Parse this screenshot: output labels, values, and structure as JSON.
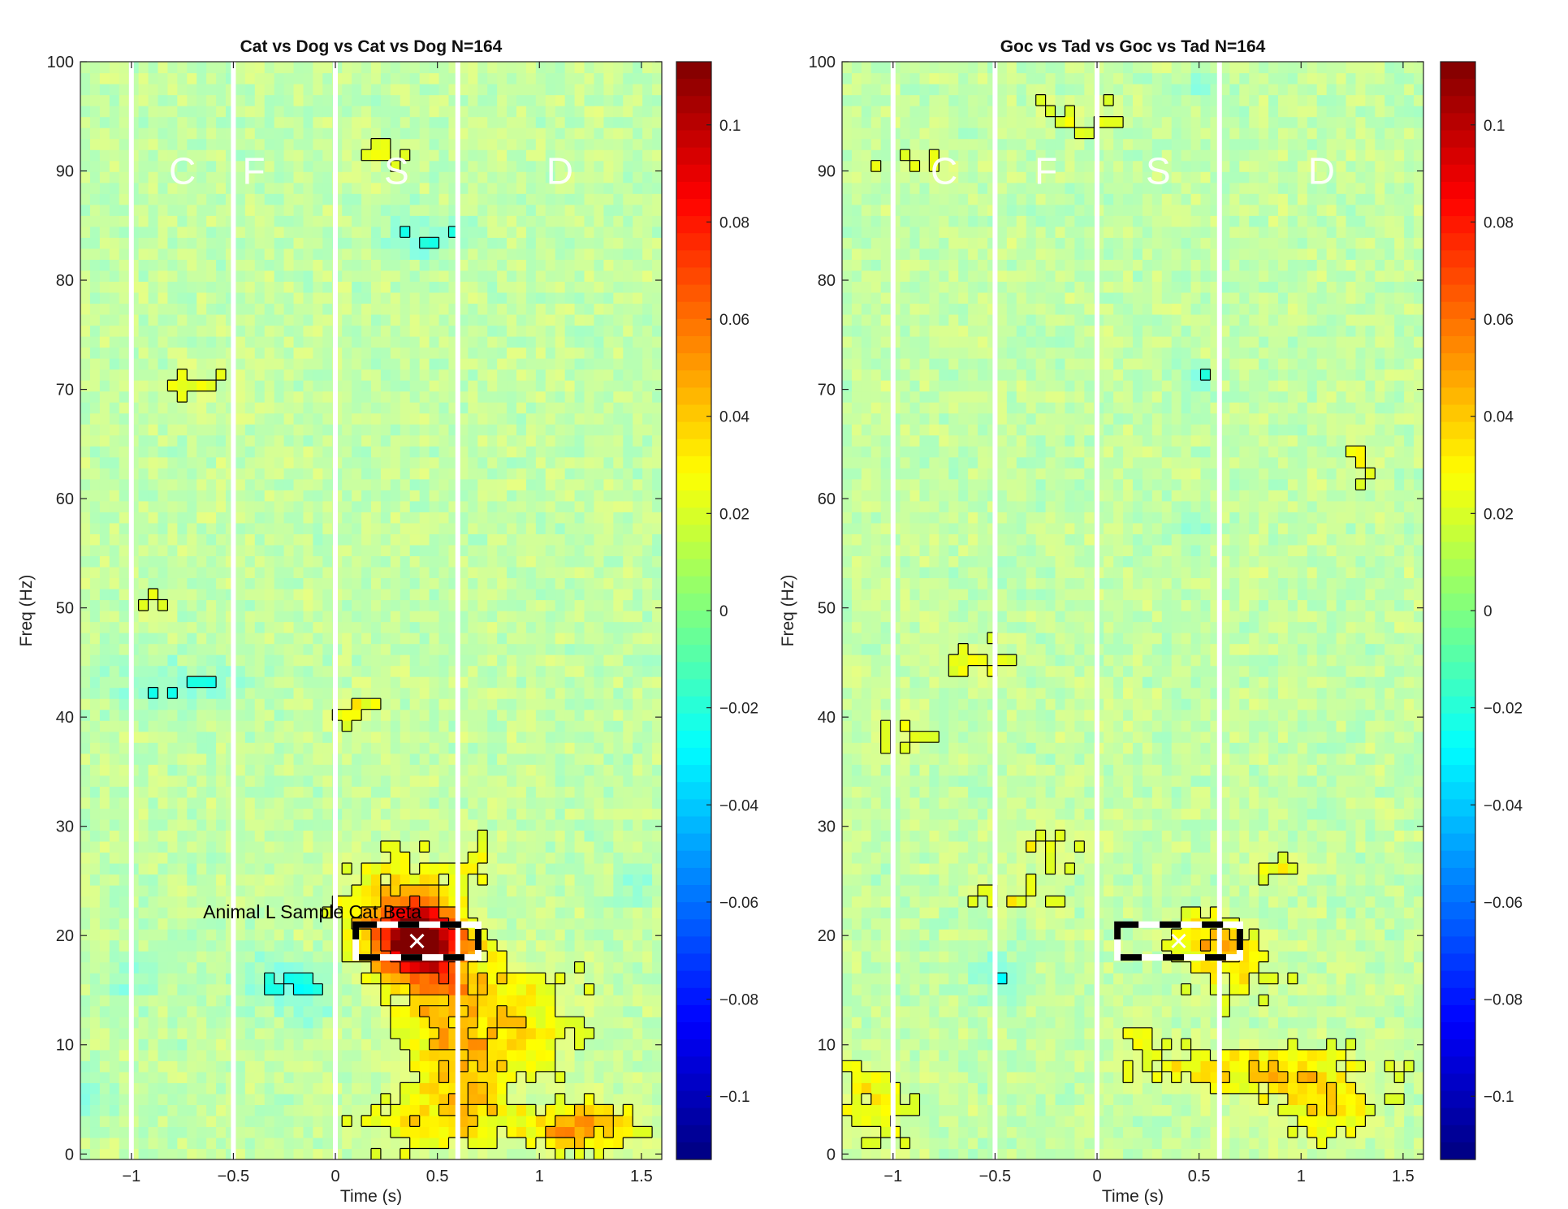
{
  "chart_data": [
    {
      "type": "heatmap",
      "title": "Cat vs Dog vs Cat vs Dog N=164",
      "xlabel": "Time (s)",
      "ylabel": "Freq (Hz)",
      "xlim": [
        -1.25,
        1.6
      ],
      "ylim": [
        -0.5,
        100
      ],
      "xticks": [
        -1,
        -0.5,
        0,
        0.5,
        1,
        1.5
      ],
      "xtick_labels": [
        "−1",
        "−0.5",
        "0",
        "0.5",
        "1",
        "1.5"
      ],
      "yticks": [
        0,
        10,
        20,
        30,
        40,
        50,
        60,
        70,
        80,
        90,
        100
      ],
      "ytick_labels": [
        "0",
        "10",
        "20",
        "30",
        "40",
        "50",
        "60",
        "70",
        "80",
        "90",
        "100"
      ],
      "epoch_lines": [
        -1,
        -0.5,
        0,
        0.6
      ],
      "phase_labels": [
        {
          "text": "C",
          "x": -0.75,
          "y": 90
        },
        {
          "text": "F",
          "x": -0.4,
          "y": 90
        },
        {
          "text": "S",
          "x": 0.3,
          "y": 90
        },
        {
          "text": "D",
          "x": 1.1,
          "y": 90
        }
      ],
      "roi": {
        "t0": 0.1,
        "t1": 0.7,
        "f0": 18,
        "f1": 21,
        "marker": {
          "x": 0.4,
          "y": 19.5
        },
        "label": "Animal L Sample Cat Beta"
      },
      "colorbar": {
        "range": [
          -0.113,
          0.113
        ],
        "ticks": [
          0.1,
          0.08,
          0.06,
          0.04,
          0.02,
          0,
          -0.02,
          -0.04,
          -0.06,
          -0.08,
          -0.1
        ],
        "tick_labels": [
          "0.1",
          "0.08",
          "0.06",
          "0.04",
          "0.02",
          "0",
          "−0.02",
          "−0.04",
          "−0.06",
          "−0.08",
          "−0.1"
        ]
      },
      "blobs": [
        {
          "x": 0.42,
          "y": 19.5,
          "sx": 0.14,
          "sy": 2.2,
          "a": 0.105
        },
        {
          "x": 0.3,
          "y": 22,
          "sx": 0.2,
          "sy": 3.5,
          "a": 0.035
        },
        {
          "x": 0.5,
          "y": 14,
          "sx": 0.15,
          "sy": 4,
          "a": 0.025
        },
        {
          "x": 0.85,
          "y": 15,
          "sx": 0.25,
          "sy": 2,
          "a": 0.025
        },
        {
          "x": 1.2,
          "y": 2.5,
          "sx": 0.2,
          "sy": 1.5,
          "a": 0.045
        },
        {
          "x": 0.8,
          "y": 10,
          "sx": 0.25,
          "sy": 2.5,
          "a": 0.025
        },
        {
          "x": 0.65,
          "y": 5,
          "sx": 0.15,
          "sy": 3,
          "a": 0.028
        },
        {
          "x": 0.35,
          "y": 3,
          "sx": 0.2,
          "sy": 2,
          "a": 0.018
        },
        {
          "x": 0.7,
          "y": 27,
          "sx": 0.08,
          "sy": 1.5,
          "a": 0.018
        },
        {
          "x": -0.8,
          "y": 43,
          "sx": 0.25,
          "sy": 1.5,
          "a": -0.025
        },
        {
          "x": -0.3,
          "y": 16,
          "sx": 0.15,
          "sy": 1.8,
          "a": -0.025
        },
        {
          "x": -0.1,
          "y": 14,
          "sx": 0.08,
          "sy": 1.5,
          "a": -0.02
        },
        {
          "x": -1.0,
          "y": 16,
          "sx": 0.1,
          "sy": 1.5,
          "a": -0.02
        },
        {
          "x": 0.45,
          "y": 84,
          "sx": 0.15,
          "sy": 1.5,
          "a": -0.025
        },
        {
          "x": -0.7,
          "y": 70.5,
          "sx": 0.1,
          "sy": 1,
          "a": 0.022
        },
        {
          "x": 0.1,
          "y": 41,
          "sx": 0.1,
          "sy": 1,
          "a": 0.018
        },
        {
          "x": -1.2,
          "y": 5,
          "sx": 0.08,
          "sy": 1.5,
          "a": -0.022
        },
        {
          "x": -0.9,
          "y": 50,
          "sx": 0.07,
          "sy": 1,
          "a": 0.015
        },
        {
          "x": 0.25,
          "y": 91.5,
          "sx": 0.1,
          "sy": 0.8,
          "a": 0.015
        },
        {
          "x": 1.5,
          "y": 25,
          "sx": 0.06,
          "sy": 1.5,
          "a": -0.02
        }
      ]
    },
    {
      "type": "heatmap",
      "title": "Goc vs Tad vs Goc vs Tad N=164",
      "xlabel": "Time (s)",
      "ylabel": "Freq (Hz)",
      "xlim": [
        -1.25,
        1.6
      ],
      "ylim": [
        -0.5,
        100
      ],
      "xticks": [
        -1,
        -0.5,
        0,
        0.5,
        1,
        1.5
      ],
      "xtick_labels": [
        "−1",
        "−0.5",
        "0",
        "0.5",
        "1",
        "1.5"
      ],
      "yticks": [
        0,
        10,
        20,
        30,
        40,
        50,
        60,
        70,
        80,
        90,
        100
      ],
      "ytick_labels": [
        "0",
        "10",
        "20",
        "30",
        "40",
        "50",
        "60",
        "70",
        "80",
        "90",
        "100"
      ],
      "epoch_lines": [
        -1,
        -0.5,
        0,
        0.6
      ],
      "phase_labels": [
        {
          "text": "C",
          "x": -0.75,
          "y": 90
        },
        {
          "text": "F",
          "x": -0.25,
          "y": 90
        },
        {
          "text": "S",
          "x": 0.3,
          "y": 90
        },
        {
          "text": "D",
          "x": 1.1,
          "y": 90
        }
      ],
      "roi": {
        "t0": 0.1,
        "t1": 0.7,
        "f0": 18,
        "f1": 21,
        "marker": {
          "x": 0.4,
          "y": 19.5
        },
        "label": ""
      },
      "colorbar": {
        "range": [
          -0.113,
          0.113
        ],
        "ticks": [
          0.1,
          0.08,
          0.06,
          0.04,
          0.02,
          0,
          -0.02,
          -0.04,
          -0.06,
          -0.08,
          -0.1
        ],
        "tick_labels": [
          "0.1",
          "0.08",
          "0.06",
          "0.04",
          "0.02",
          "0",
          "−0.02",
          "−0.04",
          "−0.06",
          "−0.08",
          "−0.1"
        ]
      },
      "blobs": [
        {
          "x": 0.55,
          "y": 19.5,
          "sx": 0.13,
          "sy": 1.8,
          "a": 0.03
        },
        {
          "x": 0.7,
          "y": 17,
          "sx": 0.15,
          "sy": 2,
          "a": 0.02
        },
        {
          "x": 1.1,
          "y": 5,
          "sx": 0.2,
          "sy": 2.5,
          "a": 0.03
        },
        {
          "x": 0.8,
          "y": 8,
          "sx": 0.2,
          "sy": 1.5,
          "a": 0.025
        },
        {
          "x": 0.4,
          "y": 7.5,
          "sx": 0.2,
          "sy": 1,
          "a": 0.02
        },
        {
          "x": -0.4,
          "y": 23.5,
          "sx": 0.15,
          "sy": 1,
          "a": 0.02
        },
        {
          "x": -0.25,
          "y": 28,
          "sx": 0.15,
          "sy": 1.2,
          "a": 0.02
        },
        {
          "x": -1.1,
          "y": 4.5,
          "sx": 0.12,
          "sy": 2.5,
          "a": 0.025
        },
        {
          "x": -0.5,
          "y": 16.5,
          "sx": 0.08,
          "sy": 2,
          "a": -0.025
        },
        {
          "x": 0.5,
          "y": 57.5,
          "sx": 0.07,
          "sy": 1,
          "a": -0.02
        },
        {
          "x": 0.5,
          "y": 71,
          "sx": 0.05,
          "sy": 1,
          "a": -0.02
        },
        {
          "x": 0.5,
          "y": 98,
          "sx": 0.08,
          "sy": 0.8,
          "a": -0.02
        },
        {
          "x": -0.6,
          "y": 45,
          "sx": 0.1,
          "sy": 1.5,
          "a": 0.02
        },
        {
          "x": -0.05,
          "y": 95,
          "sx": 0.15,
          "sy": 1,
          "a": 0.015
        },
        {
          "x": -0.9,
          "y": 90.5,
          "sx": 0.15,
          "sy": 0.8,
          "a": 0.015
        },
        {
          "x": 1.3,
          "y": 63,
          "sx": 0.06,
          "sy": 1.5,
          "a": 0.018
        },
        {
          "x": 0.9,
          "y": 26,
          "sx": 0.08,
          "sy": 1,
          "a": 0.018
        },
        {
          "x": -0.95,
          "y": 39,
          "sx": 0.1,
          "sy": 1.5,
          "a": 0.015
        },
        {
          "x": 0.2,
          "y": 11,
          "sx": 0.1,
          "sy": 2,
          "a": 0.015
        }
      ]
    }
  ]
}
